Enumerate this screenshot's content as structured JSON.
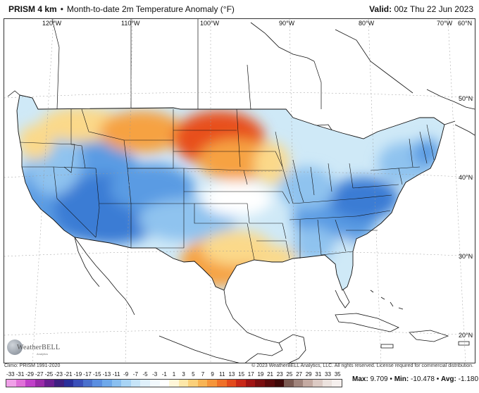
{
  "header": {
    "product": "PRISM 4 km",
    "separator": "•",
    "title": "Month-to-date 2m Temperature Anomaly (°F)",
    "valid_label": "Valid:",
    "valid_value": "00z Thu 22 Jun 2023"
  },
  "map": {
    "lon_labels": [
      "120°W",
      "110°W",
      "100°W",
      "90°W",
      "80°W",
      "70°W",
      "60°N"
    ],
    "lat_labels": [
      "50°N",
      "40°N",
      "30°N",
      "20°N"
    ],
    "anomaly_colors": {
      "warm_max": "#e8501a",
      "warm": "#f6a242",
      "warm_light": "#fbd98a",
      "near_zero": "#ffffff",
      "cool_light": "#cfe9f7",
      "cool": "#8fc3ef",
      "cool_mid": "#5a9be3",
      "cool_max": "#3a7bd4"
    }
  },
  "logo": {
    "word": "WeatherBELL",
    "tag": "Analytics"
  },
  "footer": {
    "climo": "Climo: PRISM 1991-2020",
    "copyright": "© 2023 WeatherBELL Analytics, LLC. All rights reserved. License required for commercial distribution."
  },
  "legend": {
    "ticks": [
      "-33",
      "-31",
      "-29",
      "-27",
      "-25",
      "-23",
      "-21",
      "-19",
      "-17",
      "-15",
      "-13",
      "-11",
      "-9",
      "-7",
      "-5",
      "-3",
      "-1",
      "1",
      "3",
      "5",
      "7",
      "9",
      "11",
      "13",
      "15",
      "17",
      "19",
      "21",
      "23",
      "25",
      "27",
      "29",
      "31",
      "33",
      "35"
    ],
    "colors": [
      "#f0a0e8",
      "#e070d8",
      "#c040c8",
      "#9a2aa8",
      "#6a1e90",
      "#3e1f80",
      "#2a2f9a",
      "#3a4fb8",
      "#4a70cc",
      "#5a8ee0",
      "#6ea8ea",
      "#8abff0",
      "#a8d4f5",
      "#c6e4f8",
      "#dff0fb",
      "#f2f9fd",
      "#ffffff",
      "#fff6d8",
      "#fde7a8",
      "#fbd07a",
      "#f8b454",
      "#f5953a",
      "#ef7028",
      "#e24a1c",
      "#c82818",
      "#a01414",
      "#7a0e10",
      "#5a0a0c",
      "#3e0808",
      "#7a5a52",
      "#a0847c",
      "#c4aaa2",
      "#dccac4",
      "#ece2de",
      "#f6f0ee"
    ],
    "stats_max_label": "Max:",
    "stats_max": "9.709",
    "stats_min_label": "Min:",
    "stats_min": "-10.478",
    "stats_avg_label": "Avg:",
    "stats_avg": "-1.180",
    "bullet": "•"
  }
}
